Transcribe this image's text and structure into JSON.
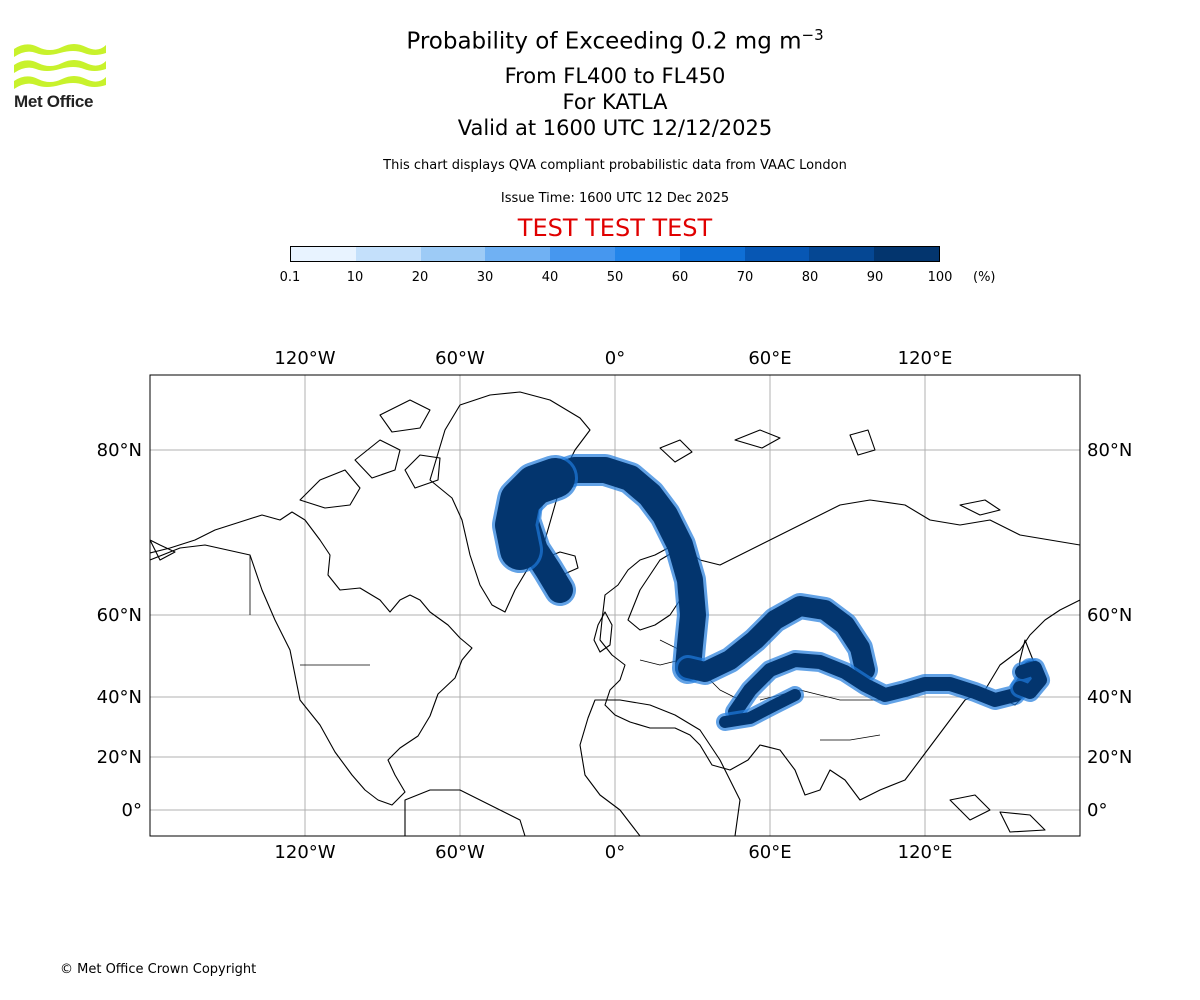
{
  "logo": {
    "text": "Met Office",
    "color": "#c8f22c"
  },
  "header": {
    "title_main": "Probability of Exceeding 0.2 mg m",
    "title_sup": "−3",
    "subtitle_levels": "From FL400 to FL450",
    "subtitle_volcano": "For KATLA",
    "subtitle_valid": "Valid at 1600 UTC 12/12/2025",
    "description": "This chart displays QVA compliant probabilistic data from VAAC London",
    "issue_time": "Issue Time: 1600 UTC 12 Dec 2025",
    "test_banner": "TEST TEST TEST"
  },
  "legend": {
    "ticks": [
      "0.1",
      "10",
      "20",
      "30",
      "40",
      "50",
      "60",
      "70",
      "80",
      "90",
      "100"
    ],
    "unit": "(%)",
    "colors": [
      "#e8f3ff",
      "#c4e0fb",
      "#9dcbf6",
      "#70b1f3",
      "#4697ef",
      "#2385ea",
      "#0f6fd6",
      "#0757b4",
      "#054793",
      "#03356e"
    ]
  },
  "map": {
    "longitude_labels": [
      "120°W",
      "60°W",
      "0°",
      "60°E",
      "120°E"
    ],
    "latitude_labels": [
      "80°N",
      "60°N",
      "40°N",
      "20°N",
      "0°"
    ],
    "plume_color": "#03356e",
    "plume_edge_color": "#1f7bdc"
  },
  "footer": {
    "copyright": "© Met Office Crown Copyright"
  }
}
